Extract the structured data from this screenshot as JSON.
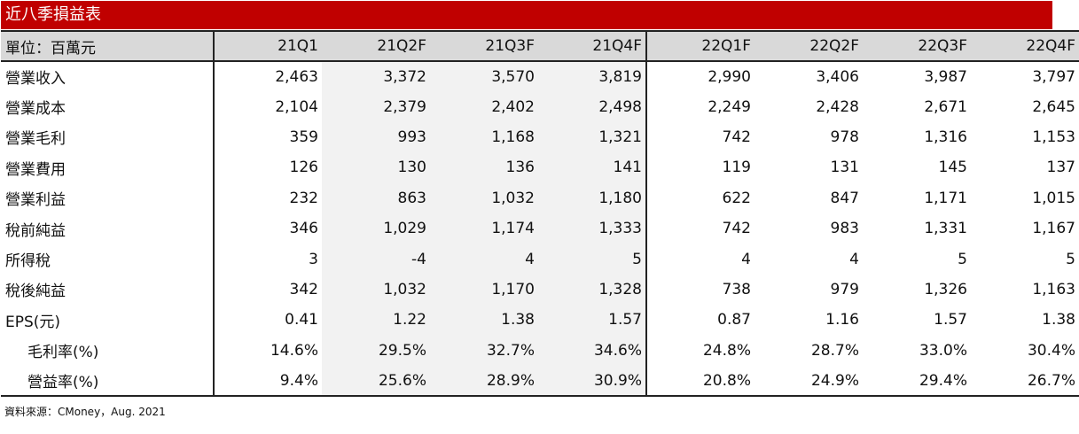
{
  "title": "近八季損益表",
  "header": {
    "unit_label": "單位：百萬元",
    "periods": [
      "21Q1",
      "21Q2F",
      "21Q3F",
      "21Q4F",
      "22Q1F",
      "22Q2F",
      "22Q3F",
      "22Q4F"
    ]
  },
  "rows": [
    {
      "label": "營業收入",
      "values": [
        "2,463",
        "3,372",
        "3,570",
        "3,819",
        "2,990",
        "3,406",
        "3,987",
        "3,797"
      ]
    },
    {
      "label": "營業成本",
      "values": [
        "2,104",
        "2,379",
        "2,402",
        "2,498",
        "2,249",
        "2,428",
        "2,671",
        "2,645"
      ]
    },
    {
      "label": "營業毛利",
      "values": [
        "359",
        "993",
        "1,168",
        "1,321",
        "742",
        "978",
        "1,316",
        "1,153"
      ]
    },
    {
      "label": "營業費用",
      "values": [
        "126",
        "130",
        "136",
        "141",
        "119",
        "131",
        "145",
        "137"
      ]
    },
    {
      "label": "營業利益",
      "values": [
        "232",
        "863",
        "1,032",
        "1,180",
        "622",
        "847",
        "1,171",
        "1,015"
      ]
    },
    {
      "label": "稅前純益",
      "values": [
        "346",
        "1,029",
        "1,174",
        "1,333",
        "742",
        "983",
        "1,331",
        "1,167"
      ]
    },
    {
      "label": "所得稅",
      "values": [
        "3",
        "-4",
        "4",
        "5",
        "4",
        "4",
        "5",
        "5"
      ]
    },
    {
      "label": "稅後純益",
      "values": [
        "342",
        "1,032",
        "1,170",
        "1,328",
        "738",
        "979",
        "1,326",
        "1,163"
      ]
    },
    {
      "label": "EPS(元)",
      "values": [
        "0.41",
        "1.22",
        "1.38",
        "1.57",
        "0.87",
        "1.16",
        "1.57",
        "1.38"
      ]
    },
    {
      "label": "毛利率(%)",
      "values": [
        "14.6%",
        "29.5%",
        "32.7%",
        "34.6%",
        "24.8%",
        "28.7%",
        "33.0%",
        "30.4%"
      ]
    },
    {
      "label": "營益率(%)",
      "values": [
        "9.4%",
        "25.6%",
        "28.9%",
        "30.9%",
        "20.8%",
        "24.9%",
        "29.4%",
        "26.7%"
      ]
    }
  ],
  "source": "資料來源：CMoney，Aug. 2021",
  "colors": {
    "title_bg": "#c00000",
    "header_bg": "#d9d9d9",
    "shaded_col_bg": "#f2f2f2"
  }
}
